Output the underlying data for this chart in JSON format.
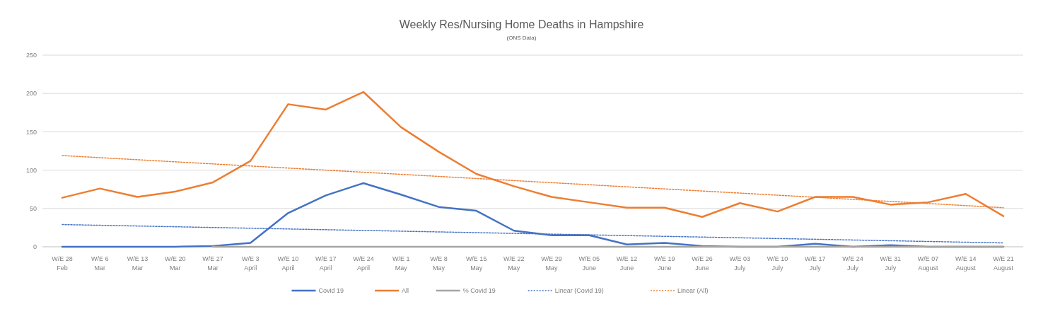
{
  "chart_data": {
    "type": "line",
    "title": "Weekly Res/Nursing Home Deaths in Hampshire",
    "subtitle": "(ONS Data)",
    "categories": [
      "W/E 28 Feb",
      "W/E 6 Mar",
      "W/E 13 Mar",
      "W/E 20 Mar",
      "W/E 27 Mar",
      "W/E 3 April",
      "W/E 10 April",
      "W/E 17 April",
      "W/E 24 April",
      "W/E 1 May",
      "W/E 8 May",
      "W/E 15 May",
      "W/E 22 May",
      "W/E 29 May",
      "W/E 05 June",
      "W/E 12 June",
      "W/E 19 June",
      "W/E 26 June",
      "W/E 03 July",
      "W/E 10 July",
      "W/E 17 July",
      "W/E 24 July",
      "W/E 31 July",
      "W/E 07 August",
      "W/E 14 August",
      "W/E 21 August"
    ],
    "series": [
      {
        "name": "Covid 19",
        "color": "#4472c4",
        "values": [
          0,
          0,
          0,
          0,
          1,
          5,
          44,
          67,
          83,
          68,
          52,
          47,
          21,
          15,
          15,
          3,
          5,
          1,
          0,
          0,
          4,
          0,
          2,
          0,
          0,
          0
        ]
      },
      {
        "name": "All",
        "color": "#ed7d31",
        "values": [
          64,
          76,
          65,
          72,
          84,
          112,
          186,
          179,
          202,
          156,
          124,
          95,
          79,
          65,
          58,
          51,
          51,
          39,
          57,
          46,
          65,
          65,
          55,
          58,
          69,
          40
        ]
      },
      {
        "name": "% Covid 19",
        "color": "#a5a5a5",
        "values": [
          null,
          null,
          null,
          null,
          0,
          0,
          0,
          0,
          0,
          0,
          0,
          0,
          0,
          0,
          0,
          0,
          0,
          0,
          0,
          0,
          0,
          0,
          0,
          0,
          0,
          0
        ]
      },
      {
        "name": "Linear (Covid 19)",
        "color": "#4472c4",
        "line_style": "dotted",
        "x": [
          "W/E 28 Feb",
          "W/E 21 August"
        ],
        "values": [
          29,
          5
        ]
      },
      {
        "name": "Linear (All)",
        "color": "#ed7d31",
        "line_style": "dotted",
        "x": [
          "W/E 28 Feb",
          "W/E 21 August"
        ],
        "values": [
          119,
          51
        ]
      }
    ],
    "ylim": [
      0,
      250
    ],
    "yticks": [
      0,
      50,
      100,
      150,
      200,
      250
    ],
    "grid": "y",
    "legend": "bottom",
    "line_style": "solid",
    "marker": "none"
  }
}
